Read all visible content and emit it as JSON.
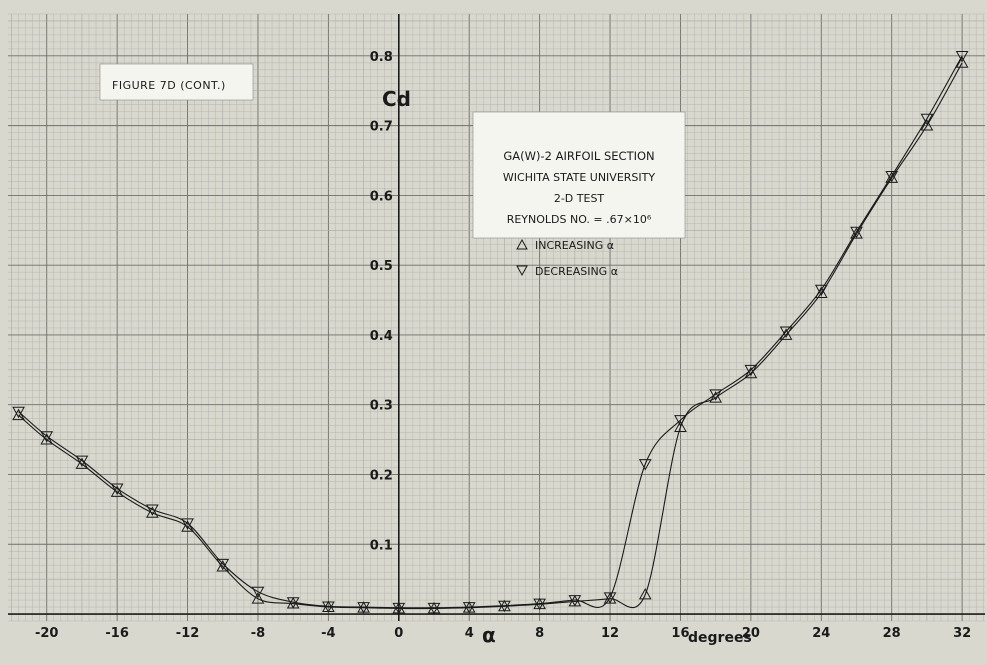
{
  "figure_label": "FIGURE 7D (CONT.)",
  "info_box": {
    "title": "GA(W)-2 AIRFOIL SECTION",
    "institution": "WICHITA STATE UNIVERSITY",
    "test": "2-D TEST",
    "reynolds": "REYNOLDS NO. = .67×10⁶",
    "legend_increasing": "INCREASING α",
    "legend_decreasing": "DECREASING α"
  },
  "colors": {
    "paper": "#d8d8cf",
    "grid_minor": "#a9a9a0",
    "grid_major": "#6f6f68",
    "ink": "#1a1a1a",
    "box": "#f5f5f0"
  },
  "chart_data": {
    "type": "line",
    "xlabel": "α",
    "xlabel_units": "degrees",
    "ylabel": "Cd",
    "xlim": [
      -22.2,
      33.3
    ],
    "ylim": [
      -0.01,
      0.86
    ],
    "x_ticks": [
      -20,
      -16,
      -12,
      -8,
      -4,
      0,
      4,
      8,
      12,
      16,
      20,
      24,
      28,
      32
    ],
    "y_ticks": [
      0.1,
      0.2,
      0.3,
      0.4,
      0.5,
      0.6,
      0.7,
      0.8
    ],
    "grid": true,
    "series": [
      {
        "name": "INCREASING α",
        "marker": "triangle-up",
        "x": [
          -21.6,
          -20,
          -18,
          -16,
          -14,
          -12,
          -10,
          -8,
          -6,
          -4,
          -2,
          0,
          2,
          4,
          6,
          8,
          10,
          12,
          14,
          16,
          18,
          20,
          22,
          24,
          26,
          28,
          30,
          32
        ],
        "y": [
          0.285,
          0.25,
          0.215,
          0.175,
          0.145,
          0.125,
          0.068,
          0.022,
          0.015,
          0.01,
          0.009,
          0.008,
          0.008,
          0.009,
          0.011,
          0.014,
          0.018,
          0.022,
          0.028,
          0.268,
          0.31,
          0.345,
          0.4,
          0.46,
          0.545,
          0.625,
          0.7,
          0.79
        ]
      },
      {
        "name": "DECREASING α",
        "marker": "triangle-down",
        "x": [
          -21.6,
          -20,
          -18,
          -16,
          -14,
          -12,
          -10,
          -8,
          -6,
          -4,
          -2,
          0,
          2,
          4,
          6,
          8,
          10,
          12,
          14,
          16,
          18,
          20,
          22,
          24,
          26,
          28,
          30,
          32
        ],
        "y": [
          0.29,
          0.255,
          0.22,
          0.18,
          0.15,
          0.13,
          0.072,
          0.032,
          0.017,
          0.011,
          0.01,
          0.009,
          0.009,
          0.01,
          0.012,
          0.015,
          0.02,
          0.024,
          0.215,
          0.278,
          0.315,
          0.35,
          0.405,
          0.465,
          0.548,
          0.628,
          0.71,
          0.8
        ]
      }
    ]
  }
}
